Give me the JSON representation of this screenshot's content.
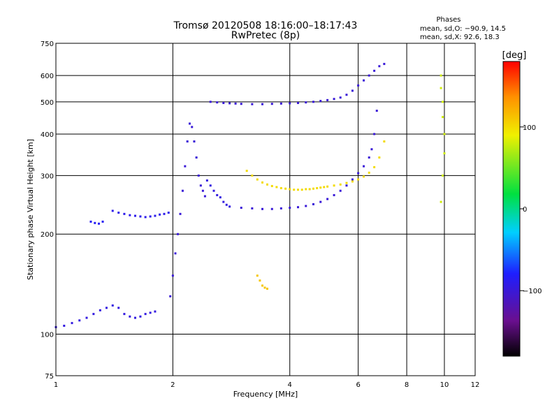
{
  "chart_data": {
    "type": "scatter",
    "title": "Tromsø 20120508 18:16:00–18:17:43",
    "subtitle": "RwPretec (8p)",
    "xlabel": "Frequency [MHz]",
    "ylabel": "Stationary phase Virtual Height [km]",
    "x_scale": "log",
    "y_scale": "log",
    "xlim": [
      1,
      12
    ],
    "ylim": [
      75,
      750
    ],
    "x_ticks": [
      1,
      2,
      4,
      6,
      8,
      10,
      12
    ],
    "y_ticks": [
      75,
      100,
      200,
      300,
      400,
      500,
      600,
      750
    ],
    "grid": true,
    "stats": {
      "heading": "Phases",
      "line_o": "mean, sd,O: −90.9, 14.5",
      "line_x": "mean, sd,X:  92.6, 18.3"
    },
    "colorbar": {
      "label": "[deg]",
      "range": [
        -180,
        180
      ],
      "ticks": [
        100,
        0,
        -100
      ],
      "tick_labels": [
        "100",
        "0",
        "−100"
      ],
      "colormap": "rainbow (black-purple-blue-cyan-green-yellow-red)"
    },
    "traces": [
      {
        "phase": -95,
        "x": [
          1.0,
          1.05,
          1.1,
          1.15,
          1.2,
          1.25,
          1.3,
          1.35,
          1.4,
          1.45,
          1.5,
          1.55,
          1.6,
          1.65,
          1.7,
          1.75,
          1.8
        ],
        "y": [
          105,
          106,
          108,
          110,
          112,
          115,
          118,
          120,
          122,
          120,
          115,
          113,
          112,
          113,
          115,
          116,
          117
        ]
      },
      {
        "phase": -90,
        "x": [
          1.4,
          1.45,
          1.5,
          1.55,
          1.6,
          1.65,
          1.7,
          1.75,
          1.8,
          1.85,
          1.9,
          1.95
        ],
        "y": [
          235,
          232,
          230,
          228,
          227,
          226,
          225,
          226,
          227,
          229,
          230,
          232
        ]
      },
      {
        "phase": -85,
        "x": [
          1.23,
          1.26,
          1.29,
          1.32
        ],
        "y": [
          218,
          216,
          215,
          218
        ]
      },
      {
        "phase": -100,
        "x": [
          1.97,
          2.0,
          2.03,
          2.06,
          2.09,
          2.12,
          2.15,
          2.18,
          2.21,
          2.24,
          2.27,
          2.3,
          2.33,
          2.36,
          2.39,
          2.42
        ],
        "y": [
          130,
          150,
          175,
          200,
          230,
          270,
          320,
          380,
          430,
          420,
          380,
          340,
          300,
          280,
          270,
          260
        ]
      },
      {
        "phase": -95,
        "x": [
          2.45,
          2.5,
          2.55,
          2.6,
          2.65,
          2.7,
          2.75,
          2.8
        ],
        "y": [
          290,
          280,
          270,
          262,
          258,
          250,
          245,
          242
        ]
      },
      {
        "phase": -100,
        "x": [
          2.5,
          2.6,
          2.7,
          2.8,
          2.9,
          3.0,
          3.2,
          3.4,
          3.6,
          3.8,
          4.0,
          4.2,
          4.4,
          4.6,
          4.8,
          5.0,
          5.2,
          5.4,
          5.6,
          5.8,
          6.0,
          6.2,
          6.4,
          6.6,
          6.8,
          7.0
        ],
        "y": [
          500,
          498,
          496,
          495,
          494,
          493,
          492,
          492,
          493,
          494,
          495,
          496,
          498,
          500,
          503,
          506,
          510,
          515,
          525,
          540,
          560,
          580,
          600,
          620,
          640,
          650
        ]
      },
      {
        "phase": -100,
        "x": [
          3.0,
          3.2,
          3.4,
          3.6,
          3.8,
          4.0,
          4.2,
          4.4,
          4.6,
          4.8,
          5.0,
          5.2,
          5.4,
          5.6,
          5.8,
          6.0,
          6.2,
          6.4,
          6.5,
          6.6,
          6.7
        ],
        "y": [
          240,
          239,
          238,
          238,
          239,
          240,
          241,
          243,
          246,
          250,
          255,
          262,
          270,
          280,
          292,
          305,
          320,
          340,
          360,
          400,
          470
        ]
      },
      {
        "phase": 100,
        "x": [
          3.1,
          3.2,
          3.3,
          3.4,
          3.5,
          3.6,
          3.7,
          3.8,
          3.9,
          4.0,
          4.1,
          4.2,
          4.3,
          4.4,
          4.5,
          4.6,
          4.7,
          4.8,
          4.9,
          5.0,
          5.2,
          5.4,
          5.6,
          5.8,
          6.0,
          6.2,
          6.4,
          6.6,
          6.8,
          7.0
        ],
        "y": [
          310,
          300,
          292,
          286,
          282,
          279,
          277,
          275,
          274,
          273,
          272,
          272,
          272,
          273,
          273,
          274,
          275,
          276,
          277,
          278,
          280,
          282,
          285,
          288,
          292,
          298,
          306,
          318,
          340,
          380
        ]
      },
      {
        "phase": 110,
        "x": [
          3.3,
          3.35,
          3.4,
          3.45,
          3.5
        ],
        "y": [
          150,
          145,
          140,
          138,
          137
        ]
      },
      {
        "phase": 80,
        "x": [
          9.8,
          9.8,
          9.9,
          9.9,
          10.0,
          10.0,
          9.9,
          9.8
        ],
        "y": [
          600,
          550,
          500,
          450,
          400,
          350,
          300,
          250
        ]
      }
    ]
  }
}
